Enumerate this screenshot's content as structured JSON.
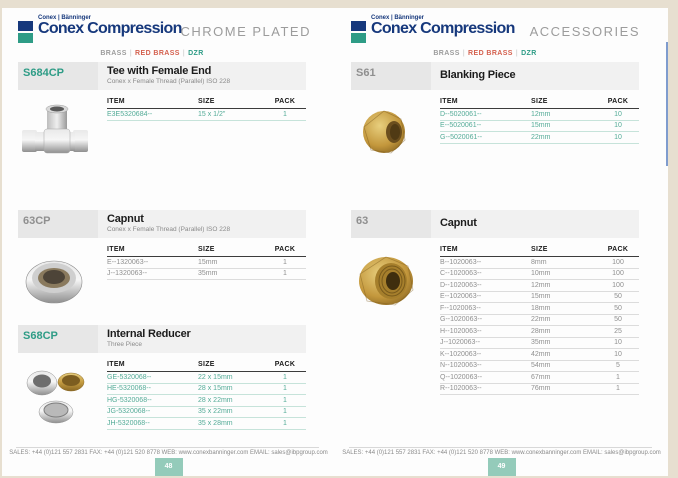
{
  "table_columns": [
    "ITEM",
    "SIZE",
    "PACK"
  ],
  "separator": "|",
  "colors": {
    "navy": "#16387c",
    "teal": "#2e9c86",
    "teal_row_text": "#53ab97",
    "red_brass": "#d4604e",
    "gray_text": "#9c9c9c",
    "tab_blue": "#7f9cce",
    "page_num_bg": "#94cbba"
  },
  "pages": [
    {
      "brand_small": "Conex | Bänninger",
      "brand_main": "Conex Compression",
      "section_title": "CHROME PLATED",
      "materials": [
        "BRASS",
        "RED BRASS",
        "DZR"
      ],
      "products": [
        {
          "code": "S684CP",
          "title": "Tee with Female End",
          "subtitle": "Conex x Female Thread (Parallel) ISO 228",
          "image": "chrome-tee-fitting",
          "rows": [
            {
              "item": "E3E5320684--",
              "size": "15 x 1/2\"",
              "pack": "1"
            }
          ]
        },
        {
          "code": "63CP",
          "title": "Capnut",
          "subtitle": "Conex x Female Thread (Parallel) ISO 228",
          "image": "chrome-capnut",
          "rows": [
            {
              "item": "E--1320063--",
              "size": "15mm",
              "pack": "1"
            },
            {
              "item": "J--1320063--",
              "size": "35mm",
              "pack": "1"
            }
          ]
        },
        {
          "code": "S68CP",
          "title": "Internal Reducer",
          "subtitle": "Three Piece",
          "image": "reducer-three-piece-rings",
          "rows": [
            {
              "item": "GE-5320068--",
              "size": "22 x 15mm",
              "pack": "1"
            },
            {
              "item": "HE-5320068--",
              "size": "28 x 15mm",
              "pack": "1"
            },
            {
              "item": "HG-5320068--",
              "size": "28 x 22mm",
              "pack": "1"
            },
            {
              "item": "JG-5320068--",
              "size": "35 x 22mm",
              "pack": "1"
            },
            {
              "item": "JH-5320068--",
              "size": "35 x 28mm",
              "pack": "1"
            }
          ]
        }
      ],
      "footer_text": "SALES: +44 (0)121 557 2831  FAX: +44 (0)121 520 8778  WEB: www.conexbanninger.com  EMAIL: sales@ibpgroup.com",
      "page_number": "48"
    },
    {
      "brand_small": "Conex | Bänninger",
      "brand_main": "Conex Compression",
      "section_title": "ACCESSORIES",
      "materials": [
        "BRASS",
        "RED BRASS",
        "DZR"
      ],
      "products": [
        {
          "code": "S61",
          "title": "Blanking Piece",
          "subtitle": "",
          "image": "brass-blanking-piece",
          "rows": [
            {
              "item": "D--5020061--",
              "size": "12mm",
              "pack": "10"
            },
            {
              "item": "E--5020061--",
              "size": "15mm",
              "pack": "10"
            },
            {
              "item": "G--5020061--",
              "size": "22mm",
              "pack": "10"
            }
          ]
        },
        {
          "code": "63",
          "title": "Capnut",
          "subtitle": "",
          "image": "brass-capnut",
          "rows": [
            {
              "item": "B--1020063--",
              "size": "8mm",
              "pack": "100"
            },
            {
              "item": "C--1020063--",
              "size": "10mm",
              "pack": "100"
            },
            {
              "item": "D--1020063--",
              "size": "12mm",
              "pack": "100"
            },
            {
              "item": "E--1020063--",
              "size": "15mm",
              "pack": "50"
            },
            {
              "item": "F--1020063--",
              "size": "18mm",
              "pack": "50"
            },
            {
              "item": "G--1020063--",
              "size": "22mm",
              "pack": "50"
            },
            {
              "item": "H--1020063--",
              "size": "28mm",
              "pack": "25"
            },
            {
              "item": "J--1020063--",
              "size": "35mm",
              "pack": "10"
            },
            {
              "item": "K--1020063--",
              "size": "42mm",
              "pack": "10"
            },
            {
              "item": "N--1020063--",
              "size": "54mm",
              "pack": "5"
            },
            {
              "item": "Q--1020063--",
              "size": "67mm",
              "pack": "1"
            },
            {
              "item": "R--1020063--",
              "size": "76mm",
              "pack": "1"
            }
          ]
        }
      ],
      "footer_text": "SALES: +44 (0)121 557 2831  FAX: +44 (0)121 520 8778  WEB: www.conexbanninger.com  EMAIL: sales@ibpgroup.com",
      "page_number": "49"
    }
  ]
}
